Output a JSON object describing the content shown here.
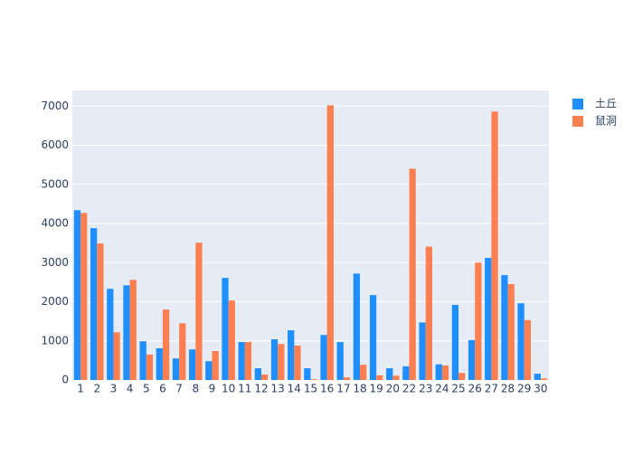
{
  "chart_data": {
    "type": "bar",
    "categories": [
      "1",
      "2",
      "3",
      "4",
      "5",
      "6",
      "7",
      "8",
      "9",
      "10",
      "11",
      "12",
      "13",
      "14",
      "15",
      "16",
      "17",
      "18",
      "19",
      "20",
      "22",
      "23",
      "24",
      "25",
      "26",
      "27",
      "28",
      "29",
      "30"
    ],
    "series": [
      {
        "name": "土丘",
        "color": "#1f8fff",
        "values": [
          4340,
          3880,
          2330,
          2420,
          990,
          810,
          550,
          780,
          480,
          2610,
          970,
          300,
          1040,
          1270,
          300,
          1150,
          970,
          2720,
          2170,
          300,
          350,
          1470,
          400,
          1920,
          1020,
          3120,
          2680,
          1960,
          160
        ]
      },
      {
        "name": "鼠洞",
        "color": "#ff7f50",
        "values": [
          4270,
          3490,
          1220,
          2560,
          650,
          1800,
          1450,
          3510,
          740,
          2030,
          970,
          140,
          920,
          880,
          20,
          7020,
          70,
          390,
          120,
          110,
          5400,
          3410,
          370,
          180,
          3000,
          6860,
          2450,
          1530,
          40
        ]
      }
    ],
    "ylim": [
      0,
      7400
    ],
    "yticks": [
      0,
      1000,
      2000,
      3000,
      4000,
      5000,
      6000,
      7000
    ],
    "grid": true,
    "legend": "top-right"
  }
}
